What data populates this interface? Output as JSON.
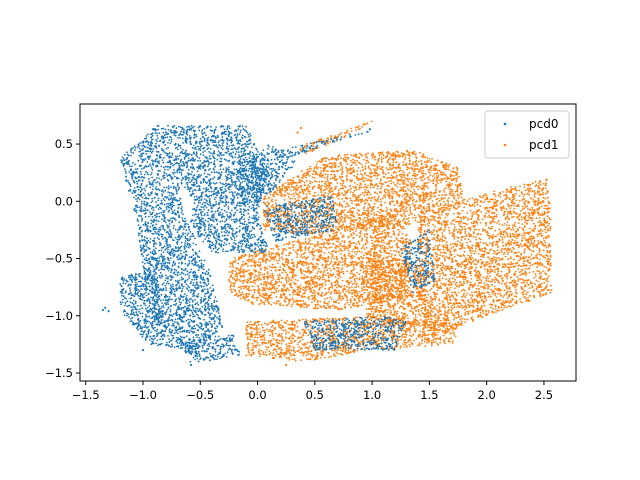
{
  "chart_data": {
    "type": "scatter",
    "title": "",
    "xlabel": "",
    "ylabel": "",
    "xlim": [
      -1.55,
      2.78
    ],
    "ylim": [
      -1.57,
      0.85
    ],
    "xticks": [
      -1.5,
      -1.0,
      -0.5,
      0.0,
      0.5,
      1.0,
      1.5,
      2.0,
      2.5
    ],
    "xtick_labels": [
      "−1.5",
      "−1.0",
      "−0.5",
      "0.0",
      "0.5",
      "1.0",
      "1.5",
      "2.0",
      "2.5"
    ],
    "yticks": [
      -1.5,
      -1.0,
      -0.5,
      0.0,
      0.5
    ],
    "ytick_labels": [
      "−1.5",
      "−1.0",
      "−0.5",
      "0.0",
      "0.5"
    ],
    "grid": false,
    "legend_position": "top-right",
    "series": [
      {
        "name": "pcd0",
        "color": "#1f77b4",
        "regions": [
          [
            [
              -0.88,
              0.66
            ],
            [
              -0.1,
              0.66
            ],
            [
              0.1,
              0.3
            ],
            [
              0.0,
              -0.1
            ],
            [
              -0.55,
              0.0
            ],
            [
              -0.7,
              0.2
            ],
            [
              -1.2,
              0.38
            ]
          ],
          [
            [
              -1.2,
              0.38
            ],
            [
              -0.7,
              0.2
            ],
            [
              -0.6,
              -0.2
            ],
            [
              -0.42,
              -0.6
            ],
            [
              -0.3,
              -1.1
            ],
            [
              -0.6,
              -1.35
            ],
            [
              -0.95,
              -0.95
            ],
            [
              -1.05,
              -0.2
            ]
          ],
          [
            [
              -0.55,
              0.0
            ],
            [
              0.0,
              -0.1
            ],
            [
              0.1,
              -0.45
            ],
            [
              -0.4,
              -0.45
            ],
            [
              -0.6,
              -0.2
            ]
          ],
          [
            [
              -1.2,
              -0.65
            ],
            [
              -0.9,
              -0.6
            ],
            [
              -0.8,
              -1.1
            ],
            [
              -0.55,
              -1.3
            ],
            [
              -0.95,
              -1.25
            ],
            [
              -1.2,
              -0.95
            ]
          ],
          [
            [
              -0.6,
              -1.2
            ],
            [
              -0.2,
              -1.15
            ],
            [
              -0.15,
              -1.35
            ],
            [
              -0.6,
              -1.42
            ]
          ],
          [
            [
              -0.25,
              0.2
            ],
            [
              0.1,
              0.5
            ],
            [
              0.35,
              0.35
            ],
            [
              0.1,
              0.05
            ],
            [
              -0.15,
              -0.05
            ]
          ],
          [
            [
              0.2,
              0.45
            ],
            [
              0.8,
              0.58
            ],
            [
              1.02,
              0.62
            ],
            [
              0.6,
              0.5
            ],
            [
              0.3,
              0.38
            ]
          ],
          [
            [
              0.4,
              -1.05
            ],
            [
              1.1,
              -1.0
            ],
            [
              1.3,
              -1.05
            ],
            [
              1.2,
              -1.3
            ],
            [
              0.5,
              -1.3
            ]
          ],
          [
            [
              1.25,
              -0.4
            ],
            [
              1.5,
              -0.25
            ],
            [
              1.55,
              -0.7
            ],
            [
              1.35,
              -0.8
            ]
          ],
          [
            [
              0.05,
              -0.05
            ],
            [
              0.65,
              0.05
            ],
            [
              0.7,
              -0.25
            ],
            [
              0.15,
              -0.35
            ]
          ]
        ],
        "outliers": [
          [
            -1.33,
            -0.93
          ],
          [
            -1.3,
            -0.96
          ],
          [
            -1.35,
            -0.95
          ],
          [
            -1.0,
            -1.3
          ],
          [
            -0.58,
            -1.43
          ],
          [
            0.98,
            0.63
          ]
        ]
      },
      {
        "name": "pcd1",
        "color": "#ff7f0e",
        "regions": [
          [
            [
              0.05,
              0.05
            ],
            [
              0.6,
              0.4
            ],
            [
              1.35,
              0.45
            ],
            [
              1.75,
              0.3
            ],
            [
              1.8,
              0.0
            ],
            [
              1.4,
              -0.2
            ],
            [
              0.8,
              -0.25
            ],
            [
              0.3,
              -0.3
            ],
            [
              0.05,
              -0.25
            ]
          ],
          [
            [
              -0.25,
              -0.5
            ],
            [
              1.2,
              -0.1
            ],
            [
              1.35,
              -0.35
            ],
            [
              1.3,
              -0.85
            ],
            [
              0.7,
              -0.95
            ],
            [
              -0.05,
              -0.9
            ],
            [
              -0.25,
              -0.8
            ]
          ],
          [
            [
              1.4,
              -0.1
            ],
            [
              2.1,
              0.1
            ],
            [
              2.55,
              0.2
            ],
            [
              2.57,
              -0.8
            ],
            [
              2.0,
              -1.0
            ],
            [
              1.5,
              -1.2
            ],
            [
              1.4,
              -0.8
            ]
          ],
          [
            [
              -0.1,
              -1.05
            ],
            [
              1.1,
              -1.0
            ],
            [
              1.8,
              -1.05
            ],
            [
              1.7,
              -1.25
            ],
            [
              1.0,
              -1.3
            ],
            [
              0.4,
              -1.4
            ],
            [
              -0.1,
              -1.35
            ]
          ],
          [
            [
              0.35,
              0.48
            ],
            [
              1.0,
              0.7
            ],
            [
              0.85,
              0.6
            ],
            [
              0.4,
              0.4
            ]
          ],
          [
            [
              0.95,
              -0.45
            ],
            [
              1.45,
              -0.55
            ],
            [
              1.5,
              -1.0
            ],
            [
              1.3,
              -1.15
            ],
            [
              0.95,
              -1.0
            ]
          ]
        ],
        "outliers": [
          [
            0.35,
            0.6
          ],
          [
            0.38,
            0.64
          ],
          [
            1.47,
            -1.07
          ],
          [
            0.25,
            -1.43
          ],
          [
            0.45,
            -1.38
          ]
        ]
      }
    ]
  }
}
